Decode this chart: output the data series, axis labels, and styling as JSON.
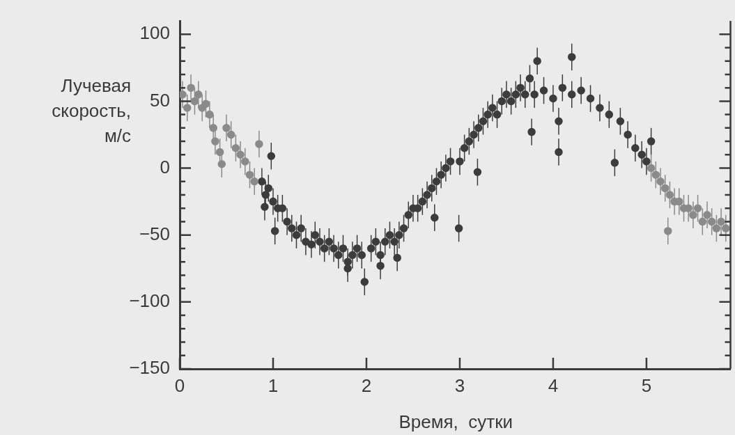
{
  "chart_data": {
    "type": "scatter",
    "xlabel": "Время,  сутки",
    "ylabel": "Лучевая скорость, м/с",
    "xlim": [
      0,
      5.9
    ],
    "ylim": [
      -150,
      110
    ],
    "xticks": [
      0,
      1,
      2,
      3,
      4,
      5
    ],
    "yticks": [
      -150,
      {
        "value": -140,
        "label": null
      },
      {
        "value": -130,
        "label": null
      },
      {
        "value": -120,
        "label": null
      },
      {
        "value": -110,
        "label": null
      },
      -100,
      {
        "value": -90,
        "label": null
      },
      {
        "value": -80,
        "label": null
      },
      {
        "value": -70,
        "label": null
      },
      {
        "value": -60,
        "label": null
      },
      -50,
      {
        "value": -40,
        "label": null
      },
      {
        "value": -30,
        "label": null
      },
      {
        "value": -20,
        "label": null
      },
      {
        "value": -10,
        "label": null
      },
      0,
      {
        "value": 10,
        "label": null
      },
      {
        "value": 20,
        "label": null
      },
      {
        "value": 30,
        "label": null
      },
      {
        "value": 40,
        "label": null
      },
      50,
      {
        "value": 60,
        "label": null
      },
      {
        "value": 70,
        "label": null
      },
      {
        "value": 80,
        "label": null
      },
      {
        "value": 90,
        "label": null
      },
      100
    ],
    "grid": false,
    "legend": false,
    "marker": "circle",
    "series": [
      {
        "color": "#8a8a8a",
        "x": [
          0.03,
          0.08,
          0.12,
          0.16,
          0.2,
          0.24,
          0.28,
          0.32,
          0.36,
          0.38,
          0.43,
          0.45,
          0.5,
          0.55,
          0.6,
          0.65,
          0.7,
          0.75,
          0.8,
          0.85,
          5.05,
          5.1,
          5.15,
          5.2,
          5.23,
          5.25,
          5.3,
          5.35,
          5.4,
          5.45,
          5.5,
          5.55,
          5.6,
          5.65,
          5.7,
          5.75,
          5.8,
          5.85
        ],
        "values": [
          55,
          45,
          60,
          50,
          55,
          45,
          48,
          40,
          30,
          20,
          12,
          3,
          30,
          25,
          15,
          10,
          5,
          -5,
          -10,
          18,
          0,
          -5,
          -10,
          -15,
          -47,
          -20,
          -25,
          -25,
          -30,
          -30,
          -35,
          -30,
          -40,
          -35,
          -40,
          -45,
          -40,
          -45
        ],
        "errors": [
          10,
          10,
          10,
          10,
          10,
          10,
          10,
          10,
          10,
          10,
          10,
          10,
          10,
          10,
          10,
          10,
          10,
          10,
          10,
          10,
          10,
          10,
          10,
          10,
          10,
          10,
          10,
          10,
          10,
          10,
          10,
          10,
          10,
          10,
          10,
          10,
          10,
          10
        ]
      },
      {
        "color": "#3c3c3c",
        "x": [
          0.88,
          0.91,
          0.92,
          0.95,
          0.98,
          1.0,
          1.02,
          1.05,
          1.1,
          1.15,
          1.2,
          1.25,
          1.3,
          1.35,
          1.41,
          1.45,
          1.5,
          1.55,
          1.6,
          1.65,
          1.7,
          1.75,
          1.8,
          1.8,
          1.85,
          1.9,
          1.95,
          1.98,
          2.05,
          2.1,
          2.15,
          2.15,
          2.2,
          2.25,
          2.3,
          2.33,
          2.35,
          2.4,
          2.45,
          2.5,
          2.55,
          2.6,
          2.65,
          2.7,
          2.73,
          2.75,
          2.8,
          2.85,
          2.9,
          2.99,
          3.0,
          3.05,
          3.1,
          3.15,
          3.19,
          3.2,
          3.25,
          3.3,
          3.35,
          3.4,
          3.45,
          3.5,
          3.55,
          3.6,
          3.65,
          3.7,
          3.75,
          3.77,
          3.8,
          3.83,
          3.9,
          4.0,
          4.06,
          4.06,
          4.1,
          4.2,
          4.2,
          4.3,
          4.4,
          4.5,
          4.6,
          4.66,
          4.72,
          4.8,
          4.88,
          4.95,
          5.0,
          5.05
        ],
        "values": [
          -10,
          -29,
          -20,
          -15,
          9,
          -25,
          -47,
          -30,
          -30,
          -40,
          -45,
          -50,
          -45,
          -55,
          -57,
          -50,
          -55,
          -60,
          -55,
          -60,
          -65,
          -60,
          -70,
          -75,
          -65,
          -60,
          -65,
          -85,
          -60,
          -55,
          -65,
          -73,
          -55,
          -50,
          -55,
          -67,
          -50,
          -45,
          -35,
          -30,
          -30,
          -25,
          -20,
          -15,
          -37,
          -10,
          -5,
          0,
          5,
          -45,
          5,
          15,
          20,
          25,
          -3,
          30,
          35,
          40,
          45,
          40,
          50,
          55,
          50,
          55,
          60,
          55,
          67,
          27,
          55,
          80,
          58,
          52,
          12,
          35,
          60,
          55,
          83,
          58,
          52,
          45,
          40,
          4,
          35,
          25,
          15,
          10,
          5,
          20
        ],
        "errors": [
          10,
          10,
          10,
          10,
          10,
          10,
          10,
          10,
          10,
          10,
          10,
          10,
          10,
          10,
          10,
          10,
          10,
          10,
          10,
          10,
          10,
          10,
          10,
          10,
          10,
          10,
          10,
          10,
          10,
          10,
          10,
          10,
          10,
          10,
          10,
          10,
          10,
          10,
          10,
          10,
          10,
          10,
          10,
          10,
          10,
          10,
          10,
          10,
          10,
          10,
          10,
          10,
          10,
          10,
          10,
          10,
          10,
          10,
          10,
          10,
          10,
          10,
          10,
          10,
          10,
          10,
          10,
          10,
          10,
          10,
          10,
          10,
          10,
          10,
          10,
          10,
          10,
          10,
          10,
          10,
          10,
          10,
          10,
          10,
          10,
          10,
          10,
          10
        ]
      }
    ]
  }
}
